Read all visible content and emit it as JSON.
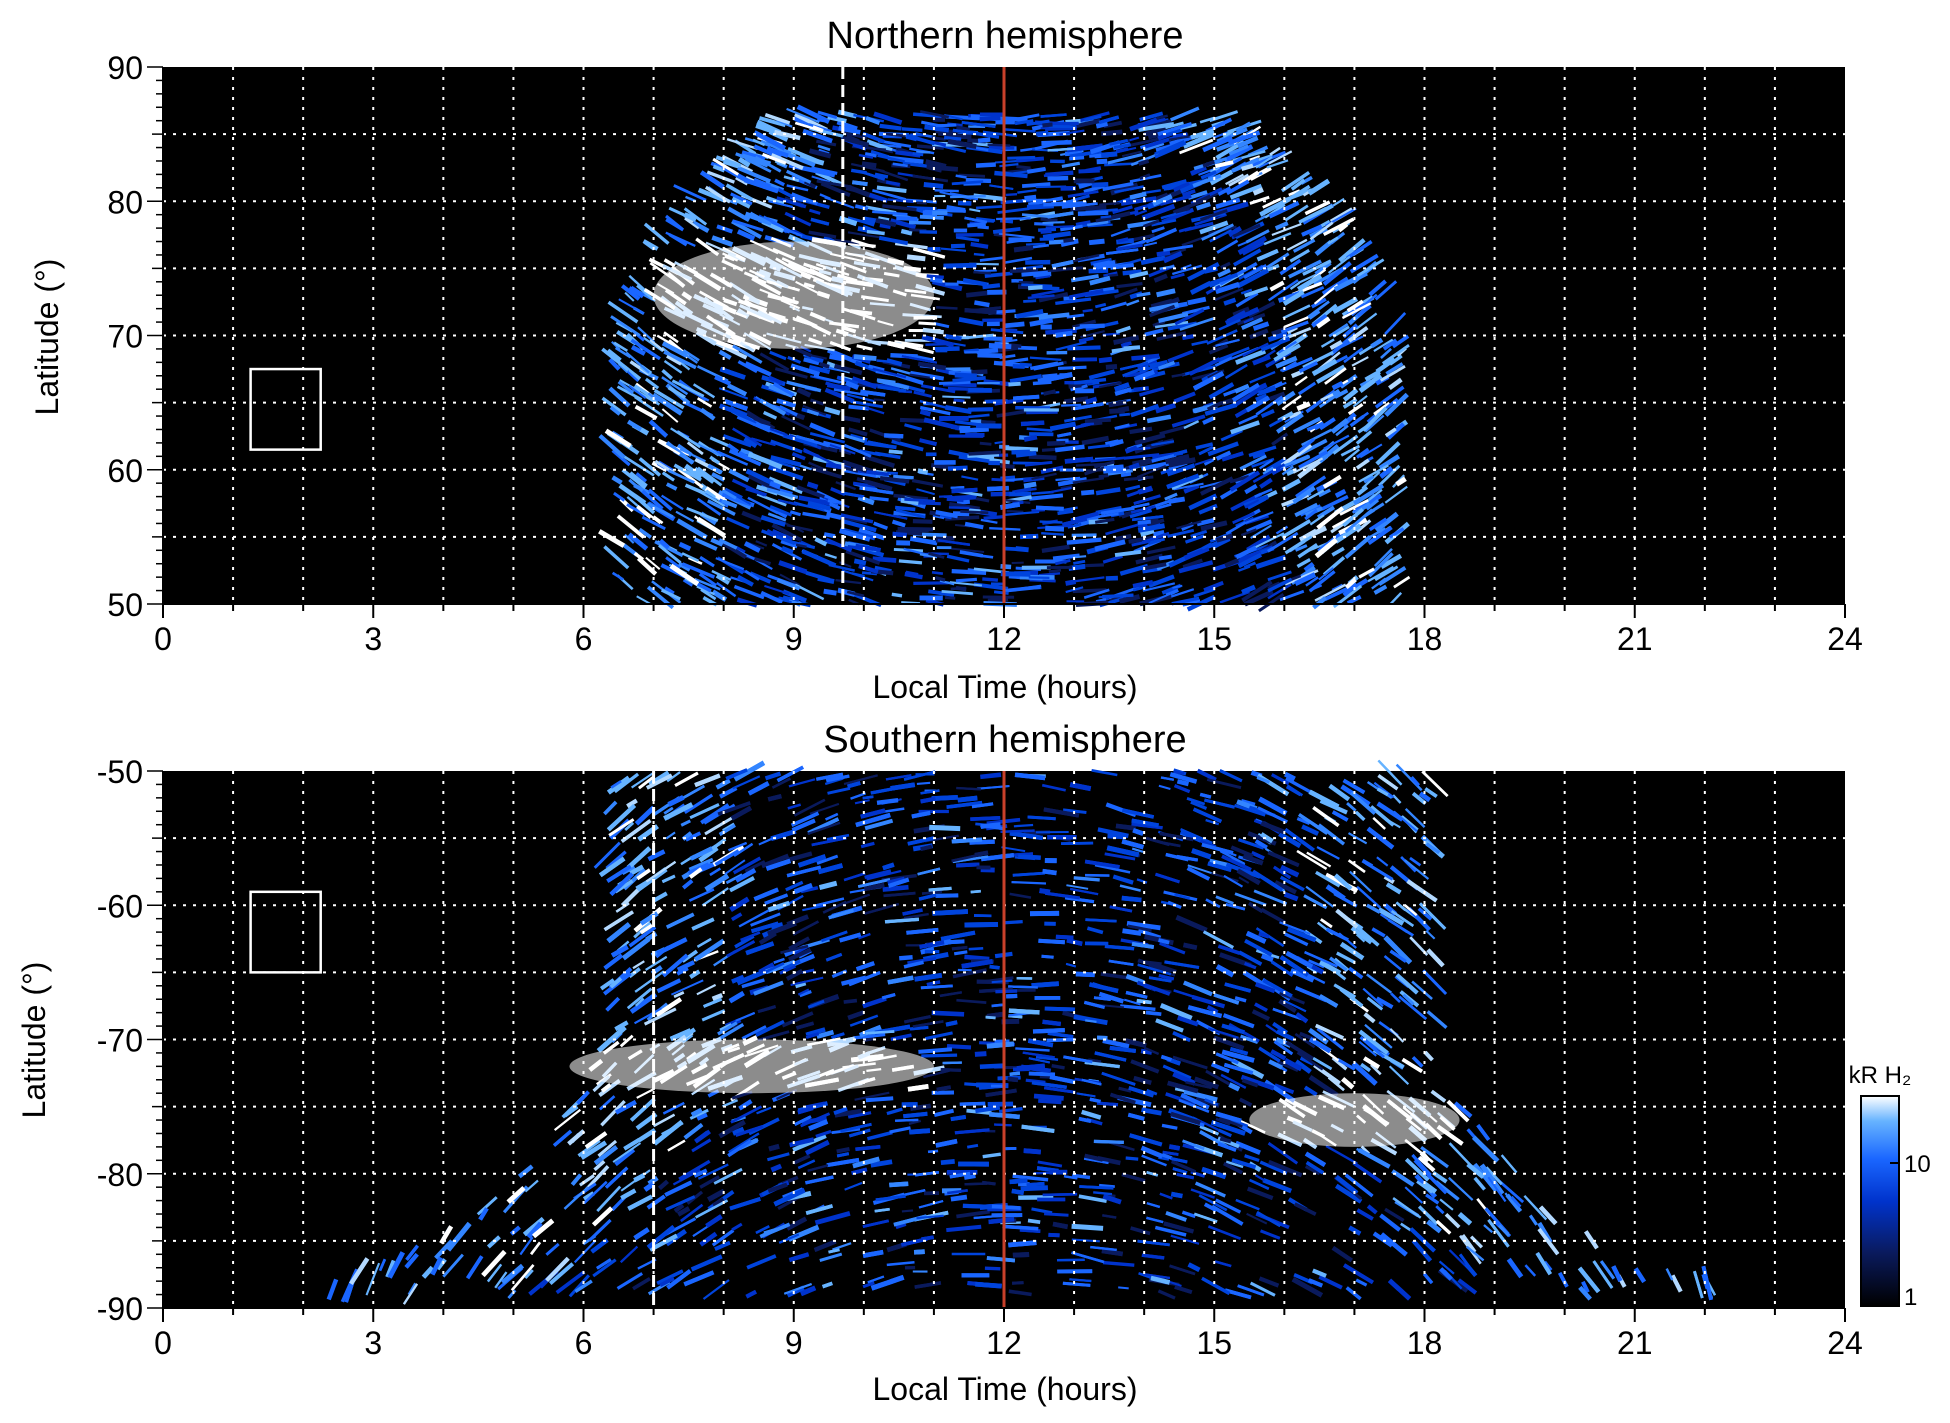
{
  "chart_data": [
    {
      "type": "heatmap",
      "title": "Northern hemisphere",
      "xlabel": "Local Time (hours)",
      "ylabel": "Latitude (°)",
      "xlim": [
        0,
        24
      ],
      "ylim": [
        50,
        90
      ],
      "x_ticks": [
        0,
        3,
        6,
        9,
        12,
        15,
        18,
        21,
        24
      ],
      "y_ticks": [
        50,
        60,
        70,
        80,
        90
      ],
      "grid": true,
      "background_color": "#000000",
      "emission_extent_local_time": [
        6.4,
        17.7
      ],
      "emission_extent_latitude": [
        50,
        86.5
      ],
      "bright_arc": {
        "local_time": [
          7,
          11
        ],
        "latitude": [
          69,
          77
        ]
      },
      "noon_line_local_time": 12,
      "dashed_line_local_time": 9.7,
      "marker_box": {
        "local_time": [
          1.25,
          2.25
        ],
        "latitude": [
          61.5,
          67.5
        ]
      }
    },
    {
      "type": "heatmap",
      "title": "Southern hemisphere",
      "xlabel": "Local Time (hours)",
      "ylabel": "Latitude (°)",
      "xlim": [
        0,
        24
      ],
      "ylim": [
        -90,
        -50
      ],
      "x_ticks": [
        0,
        3,
        6,
        9,
        12,
        15,
        18,
        21,
        24
      ],
      "y_ticks": [
        -90,
        -80,
        -70,
        -60,
        -50
      ],
      "grid": true,
      "background_color": "#000000",
      "emission_extent_local_time": [
        1.5,
        23
      ],
      "emission_extent_latitude": [
        -89,
        -50
      ],
      "bright_arc": {
        "local_time": [
          5.8,
          11
        ],
        "latitude": [
          -74,
          -70
        ]
      },
      "bright_arc_2": {
        "local_time": [
          15.5,
          18.5
        ],
        "latitude": [
          -78,
          -74
        ]
      },
      "noon_line_local_time": 12,
      "dashed_line_local_time": 7,
      "marker_box": {
        "local_time": [
          1.25,
          2.25
        ],
        "latitude": [
          -65,
          -59
        ]
      }
    }
  ],
  "colorbar": {
    "label": "kR H₂",
    "tick_labels": [
      "1",
      "10"
    ],
    "scale": "log",
    "colors": [
      "#000000",
      "#0a1a5c",
      "#0033cc",
      "#1a66ff",
      "#66b3ff",
      "#ffffff"
    ]
  },
  "colors": {
    "noon_line": "#c8402a",
    "grid": "#ffffff",
    "panel_background": "#000000"
  }
}
